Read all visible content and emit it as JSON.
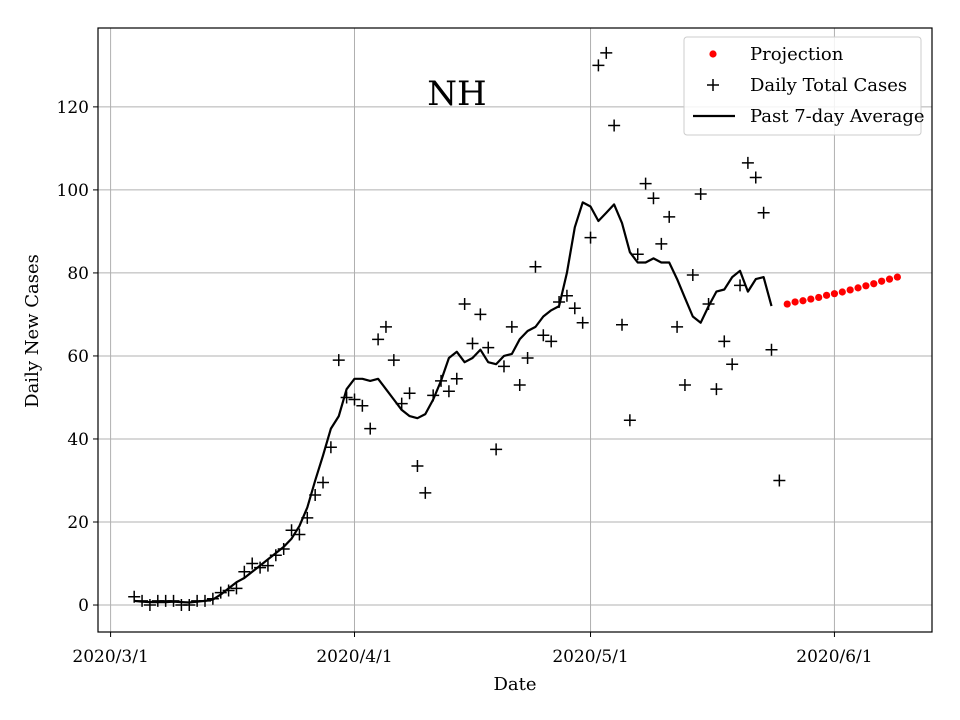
{
  "chart_data": {
    "type": "line",
    "title": "NH",
    "xlabel": "Date",
    "ylabel": "Daily New Cases",
    "x_ticks": [
      "2020/3/1",
      "2020/4/1",
      "2020/5/1",
      "2020/6/1"
    ],
    "y_ticks": [
      "0",
      "20",
      "40",
      "60",
      "80",
      "100",
      "120"
    ],
    "xlim_days_from_2020_3_1": [
      -1.6,
      104.4
    ],
    "ylim": [
      -6.5,
      139
    ],
    "grid": true,
    "legend_position": "top-right",
    "legend": [
      {
        "label": "Projection",
        "marker": "dot",
        "color": "#ff0000"
      },
      {
        "label": "Daily Total Cases",
        "marker": "plus",
        "color": "#000000"
      },
      {
        "label": "Past 7-day Average",
        "marker": "line",
        "color": "#000000"
      }
    ],
    "series": [
      {
        "name": "Daily Total Cases",
        "style": "plus",
        "color": "#000000",
        "points": [
          [
            "2020-03-04",
            2
          ],
          [
            "2020-03-05",
            1
          ],
          [
            "2020-03-06",
            0
          ],
          [
            "2020-03-07",
            1
          ],
          [
            "2020-03-08",
            1
          ],
          [
            "2020-03-09",
            1
          ],
          [
            "2020-03-10",
            0
          ],
          [
            "2020-03-11",
            0
          ],
          [
            "2020-03-12",
            1
          ],
          [
            "2020-03-13",
            1
          ],
          [
            "2020-03-14",
            1.5
          ],
          [
            "2020-03-15",
            3
          ],
          [
            "2020-03-16",
            3.5
          ],
          [
            "2020-03-17",
            4
          ],
          [
            "2020-03-18",
            8
          ],
          [
            "2020-03-19",
            10
          ],
          [
            "2020-03-20",
            9
          ],
          [
            "2020-03-21",
            9.5
          ],
          [
            "2020-03-22",
            12
          ],
          [
            "2020-03-23",
            13.5
          ],
          [
            "2020-03-24",
            18
          ],
          [
            "2020-03-25",
            17
          ],
          [
            "2020-03-26",
            21
          ],
          [
            "2020-03-27",
            26.5
          ],
          [
            "2020-03-28",
            29.5
          ],
          [
            "2020-03-29",
            38
          ],
          [
            "2020-03-30",
            59
          ],
          [
            "2020-03-31",
            50
          ],
          [
            "2020-04-01",
            49.5
          ],
          [
            "2020-04-02",
            48
          ],
          [
            "2020-04-03",
            42.5
          ],
          [
            "2020-04-04",
            64
          ],
          [
            "2020-04-05",
            67
          ],
          [
            "2020-04-06",
            59
          ],
          [
            "2020-04-07",
            48.5
          ],
          [
            "2020-04-08",
            51
          ],
          [
            "2020-04-09",
            33.5
          ],
          [
            "2020-04-10",
            27
          ],
          [
            "2020-04-11",
            50.5
          ],
          [
            "2020-04-12",
            54
          ],
          [
            "2020-04-13",
            51.5
          ],
          [
            "2020-04-14",
            54.5
          ],
          [
            "2020-04-15",
            72.5
          ],
          [
            "2020-04-16",
            63
          ],
          [
            "2020-04-17",
            70
          ],
          [
            "2020-04-18",
            62
          ],
          [
            "2020-04-19",
            37.5
          ],
          [
            "2020-04-20",
            57.5
          ],
          [
            "2020-04-21",
            67
          ],
          [
            "2020-04-22",
            53
          ],
          [
            "2020-04-23",
            59.5
          ],
          [
            "2020-04-24",
            81.5
          ],
          [
            "2020-04-25",
            65
          ],
          [
            "2020-04-26",
            63.5
          ],
          [
            "2020-04-27",
            73
          ],
          [
            "2020-04-28",
            74.5
          ],
          [
            "2020-04-29",
            71.5
          ],
          [
            "2020-04-30",
            68
          ],
          [
            "2020-05-01",
            88.5
          ],
          [
            "2020-05-02",
            130
          ],
          [
            "2020-05-03",
            133
          ],
          [
            "2020-05-04",
            115.5
          ],
          [
            "2020-05-05",
            67.5
          ],
          [
            "2020-05-06",
            44.5
          ],
          [
            "2020-05-07",
            84.5
          ],
          [
            "2020-05-08",
            101.5
          ],
          [
            "2020-05-09",
            98
          ],
          [
            "2020-05-10",
            87
          ],
          [
            "2020-05-11",
            93.5
          ],
          [
            "2020-05-12",
            67
          ],
          [
            "2020-05-13",
            53
          ],
          [
            "2020-05-14",
            79.5
          ],
          [
            "2020-05-15",
            99
          ],
          [
            "2020-05-16",
            72.5
          ],
          [
            "2020-05-17",
            52
          ],
          [
            "2020-05-18",
            63.5
          ],
          [
            "2020-05-19",
            58
          ],
          [
            "2020-05-20",
            77
          ],
          [
            "2020-05-21",
            106.5
          ],
          [
            "2020-05-22",
            103
          ],
          [
            "2020-05-23",
            94.5
          ],
          [
            "2020-05-24",
            61.5
          ],
          [
            "2020-05-25",
            30
          ]
        ]
      },
      {
        "name": "Past 7-day Average",
        "style": "line",
        "color": "#000000",
        "points": [
          [
            "2020-03-04",
            1
          ],
          [
            "2020-03-05",
            0.8
          ],
          [
            "2020-03-06",
            0.7
          ],
          [
            "2020-03-07",
            0.7
          ],
          [
            "2020-03-08",
            0.7
          ],
          [
            "2020-03-09",
            0.8
          ],
          [
            "2020-03-10",
            0.7
          ],
          [
            "2020-03-11",
            0.6
          ],
          [
            "2020-03-12",
            0.8
          ],
          [
            "2020-03-13",
            1
          ],
          [
            "2020-03-14",
            1.3
          ],
          [
            "2020-03-15",
            2.5
          ],
          [
            "2020-03-16",
            4
          ],
          [
            "2020-03-17",
            5.5
          ],
          [
            "2020-03-18",
            6.5
          ],
          [
            "2020-03-19",
            8
          ],
          [
            "2020-03-20",
            9.5
          ],
          [
            "2020-03-21",
            11
          ],
          [
            "2020-03-22",
            12.5
          ],
          [
            "2020-03-23",
            14
          ],
          [
            "2020-03-24",
            16
          ],
          [
            "2020-03-25",
            19
          ],
          [
            "2020-03-26",
            23.5
          ],
          [
            "2020-03-27",
            30
          ],
          [
            "2020-03-28",
            36
          ],
          [
            "2020-03-29",
            42.5
          ],
          [
            "2020-03-30",
            45.5
          ],
          [
            "2020-03-31",
            52
          ],
          [
            "2020-04-01",
            54.5
          ],
          [
            "2020-04-02",
            54.5
          ],
          [
            "2020-04-03",
            54
          ],
          [
            "2020-04-04",
            54.5
          ],
          [
            "2020-04-05",
            52
          ],
          [
            "2020-04-06",
            49.5
          ],
          [
            "2020-04-07",
            47
          ],
          [
            "2020-04-08",
            45.5
          ],
          [
            "2020-04-09",
            45
          ],
          [
            "2020-04-10",
            46
          ],
          [
            "2020-04-11",
            49.5
          ],
          [
            "2020-04-12",
            54
          ],
          [
            "2020-04-13",
            59.5
          ],
          [
            "2020-04-14",
            61
          ],
          [
            "2020-04-15",
            58.5
          ],
          [
            "2020-04-16",
            59.5
          ],
          [
            "2020-04-17",
            61.5
          ],
          [
            "2020-04-18",
            58.5
          ],
          [
            "2020-04-19",
            58
          ],
          [
            "2020-04-20",
            60
          ],
          [
            "2020-04-21",
            60.5
          ],
          [
            "2020-04-22",
            64
          ],
          [
            "2020-04-23",
            66
          ],
          [
            "2020-04-24",
            67
          ],
          [
            "2020-04-25",
            69.5
          ],
          [
            "2020-04-26",
            71
          ],
          [
            "2020-04-27",
            72
          ],
          [
            "2020-04-28",
            80
          ],
          [
            "2020-04-29",
            91
          ],
          [
            "2020-04-30",
            97
          ],
          [
            "2020-05-01",
            96
          ],
          [
            "2020-05-02",
            92.5
          ],
          [
            "2020-05-03",
            94.5
          ],
          [
            "2020-05-04",
            96.5
          ],
          [
            "2020-05-05",
            92
          ],
          [
            "2020-05-06",
            85
          ],
          [
            "2020-05-07",
            82.5
          ],
          [
            "2020-05-08",
            82.5
          ],
          [
            "2020-05-09",
            83.5
          ],
          [
            "2020-05-10",
            82.5
          ],
          [
            "2020-05-11",
            82.5
          ],
          [
            "2020-05-12",
            78.5
          ],
          [
            "2020-05-13",
            74
          ],
          [
            "2020-05-14",
            69.5
          ],
          [
            "2020-05-15",
            68
          ],
          [
            "2020-05-16",
            72
          ],
          [
            "2020-05-17",
            75.5
          ],
          [
            "2020-05-18",
            76
          ],
          [
            "2020-05-19",
            79
          ],
          [
            "2020-05-20",
            80.5
          ],
          [
            "2020-05-21",
            75.5
          ],
          [
            "2020-05-22",
            78.5
          ],
          [
            "2020-05-23",
            79
          ],
          [
            "2020-05-24",
            72
          ]
        ]
      },
      {
        "name": "Projection",
        "style": "dot",
        "color": "#ff0000",
        "points": [
          [
            "2020-05-26",
            72.5
          ],
          [
            "2020-05-27",
            73
          ],
          [
            "2020-05-28",
            73.3
          ],
          [
            "2020-05-29",
            73.7
          ],
          [
            "2020-05-30",
            74.1
          ],
          [
            "2020-05-31",
            74.6
          ],
          [
            "2020-06-01",
            75
          ],
          [
            "2020-06-02",
            75.4
          ],
          [
            "2020-06-03",
            75.9
          ],
          [
            "2020-06-04",
            76.4
          ],
          [
            "2020-06-05",
            76.9
          ],
          [
            "2020-06-06",
            77.4
          ],
          [
            "2020-06-07",
            78
          ],
          [
            "2020-06-08",
            78.5
          ],
          [
            "2020-06-09",
            79
          ]
        ]
      }
    ]
  }
}
